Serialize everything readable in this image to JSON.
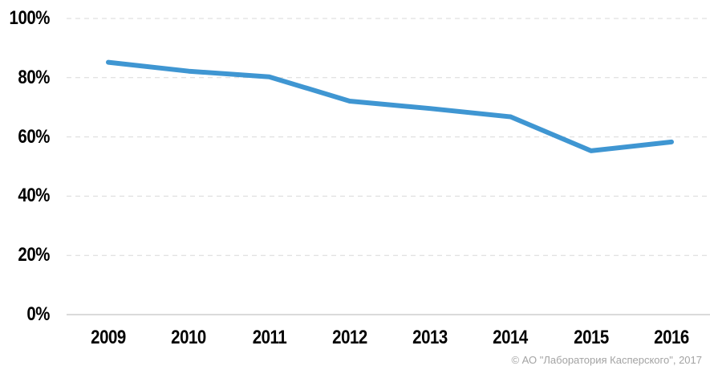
{
  "chart_data": {
    "type": "line",
    "title": "",
    "xlabel": "",
    "ylabel": "",
    "categories": [
      "2009",
      "2010",
      "2011",
      "2012",
      "2013",
      "2014",
      "2015",
      "2016"
    ],
    "values": [
      85.2,
      82.2,
      80.3,
      72.1,
      69.6,
      66.8,
      55.3,
      58.3
    ],
    "ylim": [
      0,
      100
    ],
    "ytick_step": 20,
    "ytick_values": [
      100,
      80,
      60,
      40,
      20,
      0
    ],
    "ytick_labels": [
      "100%",
      "80%",
      "60%",
      "40%",
      "20%",
      "0%"
    ],
    "grid": "horizontal-dashed",
    "legend": "none",
    "line_color": "#3f96d2"
  },
  "colors": {
    "line": "#3f96d2",
    "gridline": "#d9d9d9",
    "axis_line": "#c3c3c3",
    "tick_label": "#000000",
    "copyright": "#a3a3a3",
    "background": "#ffffff"
  },
  "footer": {
    "copyright": "© АО \"Лаборатория Касперского\", 2017"
  }
}
